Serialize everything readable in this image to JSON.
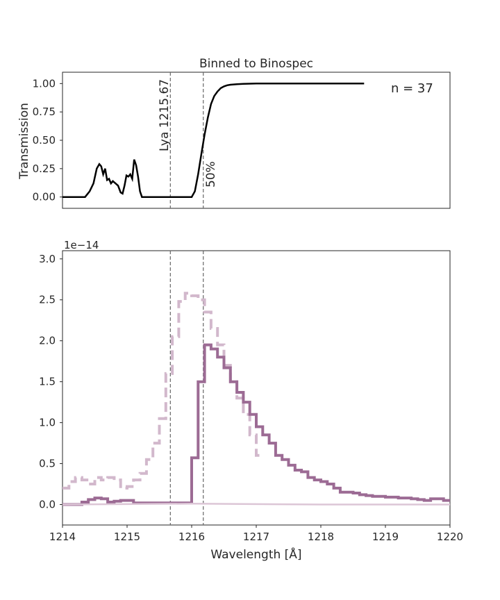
{
  "chart_data": [
    {
      "type": "line",
      "title": "Binned to Binospec",
      "ylabel": "Transmission",
      "xlabel": "",
      "xlim": [
        1214,
        1220
      ],
      "ylim": [
        -0.1,
        1.1
      ],
      "y_ticks": [
        "0.00",
        "0.25",
        "0.50",
        "0.75",
        "1.00"
      ],
      "grid": false,
      "annotations": {
        "count_text": "n = 37",
        "line1_label": "Lya 1215.67",
        "line2_label": "50%"
      },
      "vlines": [
        1215.67,
        1216.18
      ],
      "series": [
        {
          "color": "#000000",
          "x": [
            1214.0,
            1214.35,
            1214.42,
            1214.48,
            1214.53,
            1214.57,
            1214.6,
            1214.63,
            1214.66,
            1214.69,
            1214.72,
            1214.75,
            1214.78,
            1214.82,
            1214.86,
            1214.9,
            1214.93,
            1214.96,
            1214.99,
            1215.02,
            1215.05,
            1215.08,
            1215.11,
            1215.14,
            1215.17,
            1215.2,
            1215.23,
            1215.5,
            1215.67,
            1215.9,
            1216.0,
            1216.05,
            1216.1,
            1216.15,
            1216.2,
            1216.25,
            1216.3,
            1216.35,
            1216.4,
            1216.45,
            1216.5,
            1216.55,
            1216.6,
            1216.7,
            1216.8,
            1217.0,
            1217.5,
            1218.0,
            1218.5,
            1218.67
          ],
          "y": [
            0.0,
            0.0,
            0.05,
            0.12,
            0.25,
            0.29,
            0.27,
            0.2,
            0.25,
            0.15,
            0.16,
            0.12,
            0.14,
            0.12,
            0.1,
            0.04,
            0.03,
            0.1,
            0.19,
            0.18,
            0.2,
            0.16,
            0.33,
            0.28,
            0.18,
            0.05,
            0.0,
            0.0,
            0.0,
            0.0,
            0.0,
            0.05,
            0.2,
            0.38,
            0.55,
            0.7,
            0.82,
            0.89,
            0.93,
            0.96,
            0.975,
            0.985,
            0.99,
            0.995,
            0.998,
            1.0,
            1.0,
            1.0,
            1.0,
            1.0
          ]
        }
      ]
    },
    {
      "type": "line",
      "title": "",
      "xlabel": "Wavelength [Å]",
      "ylabel": "",
      "y_offset_text": "1e−14",
      "xlim": [
        1214,
        1220
      ],
      "ylim": [
        -0.25,
        3.1
      ],
      "x_ticks": [
        "1214",
        "1215",
        "1216",
        "1217",
        "1218",
        "1219",
        "1220"
      ],
      "y_ticks": [
        "0.0",
        "0.5",
        "1.0",
        "1.5",
        "2.0",
        "2.5",
        "3.0"
      ],
      "grid": false,
      "vlines": [
        1215.67,
        1216.18
      ],
      "series": [
        {
          "style": "dashed",
          "color": "#d2b8cc",
          "step": true,
          "x": [
            1214.0,
            1214.1,
            1214.2,
            1214.3,
            1214.4,
            1214.5,
            1214.6,
            1214.7,
            1214.8,
            1214.9,
            1215.0,
            1215.1,
            1215.2,
            1215.3,
            1215.4,
            1215.5,
            1215.6,
            1215.7,
            1215.8,
            1215.9,
            1216.0,
            1216.1,
            1216.2,
            1216.3,
            1216.4,
            1216.5,
            1216.6,
            1216.7,
            1216.8,
            1216.9,
            1217.0
          ],
          "y": [
            0.2,
            0.28,
            0.33,
            0.3,
            0.25,
            0.33,
            0.3,
            0.33,
            0.3,
            0.2,
            0.22,
            0.3,
            0.38,
            0.55,
            0.75,
            1.05,
            1.6,
            2.05,
            2.48,
            2.58,
            2.55,
            2.5,
            2.35,
            2.15,
            1.95,
            1.7,
            1.5,
            1.3,
            1.1,
            0.85,
            0.6
          ]
        },
        {
          "style": "solid",
          "color": "#9c6b94",
          "step": true,
          "x": [
            1214.0,
            1214.1,
            1214.2,
            1214.3,
            1214.4,
            1214.5,
            1214.6,
            1214.7,
            1214.8,
            1214.9,
            1215.0,
            1215.1,
            1215.2,
            1215.3,
            1215.4,
            1215.5,
            1215.6,
            1215.7,
            1215.8,
            1215.9,
            1216.0,
            1216.1,
            1216.2,
            1216.3,
            1216.4,
            1216.5,
            1216.6,
            1216.7,
            1216.8,
            1216.9,
            1217.0,
            1217.1,
            1217.2,
            1217.3,
            1217.4,
            1217.5,
            1217.6,
            1217.7,
            1217.8,
            1217.9,
            1218.0,
            1218.1,
            1218.2,
            1218.3,
            1218.4,
            1218.5,
            1218.6,
            1218.7,
            1218.8,
            1218.9,
            1219.0,
            1219.1,
            1219.2,
            1219.3,
            1219.4,
            1219.5,
            1219.6,
            1219.7,
            1219.8,
            1219.9
          ],
          "y": [
            0.0,
            0.0,
            0.0,
            0.03,
            0.06,
            0.08,
            0.07,
            0.03,
            0.04,
            0.05,
            0.05,
            0.02,
            0.02,
            0.02,
            0.02,
            0.02,
            0.02,
            0.02,
            0.02,
            0.02,
            0.57,
            1.5,
            1.95,
            1.9,
            1.8,
            1.67,
            1.5,
            1.37,
            1.25,
            1.1,
            0.95,
            0.85,
            0.75,
            0.6,
            0.55,
            0.48,
            0.42,
            0.4,
            0.33,
            0.3,
            0.28,
            0.25,
            0.2,
            0.15,
            0.15,
            0.14,
            0.12,
            0.11,
            0.1,
            0.1,
            0.09,
            0.09,
            0.08,
            0.08,
            0.07,
            0.06,
            0.05,
            0.07,
            0.07,
            0.05
          ]
        },
        {
          "style": "solid",
          "color": "#dcc6d6",
          "step": false,
          "x": [
            1214.0,
            1216.0,
            1218.0,
            1220.0
          ],
          "y": [
            0.0,
            0.01,
            0.0,
            0.0
          ]
        }
      ]
    }
  ]
}
